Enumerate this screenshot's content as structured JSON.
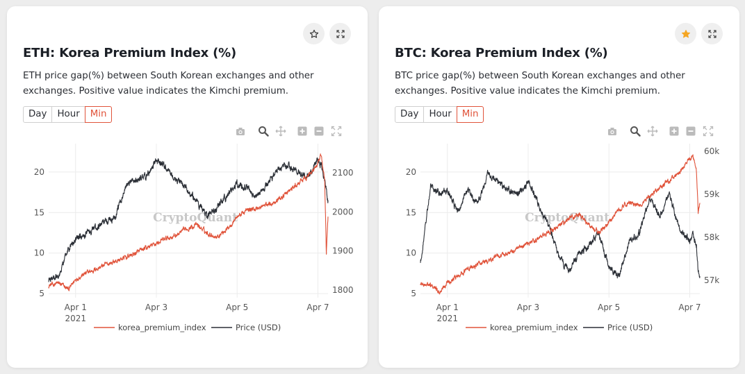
{
  "cards": [
    {
      "id": "eth",
      "title": "ETH: Korea Premium Index (%)",
      "description": "ETH price gap(%) between South Korean exchanges and other exchanges. Positive value indicates the Kimchi premium.",
      "starred": false,
      "tabs": [
        "Day",
        "Hour",
        "Min"
      ],
      "active_tab": "Min",
      "watermark": "CryptoQuant",
      "chart_data": {
        "type": "line",
        "x_range": [
          "2021-03-31 08:00",
          "2021-04-07 06:00"
        ],
        "x_ticks": [
          {
            "label": "Apr 1",
            "sublabel": "2021",
            "x": "2021-04-01"
          },
          {
            "label": "Apr 3",
            "sublabel": "",
            "x": "2021-04-03"
          },
          {
            "label": "Apr 5",
            "sublabel": "",
            "x": "2021-04-05"
          },
          {
            "label": "Apr 7",
            "sublabel": "",
            "x": "2021-04-07"
          }
        ],
        "y_left": {
          "range": [
            4.5,
            23.5
          ],
          "ticks": [
            "5",
            "10",
            "15",
            "20"
          ]
        },
        "y_right": {
          "range": [
            1780,
            2175
          ],
          "ticks": [
            "1800",
            "1900",
            "2000",
            "2100"
          ]
        },
        "grid": true,
        "legend_placement": "bottom",
        "series": [
          {
            "name": "korea_premium_index",
            "axis": "left",
            "color": "#e0533a",
            "x": [
              "2021-03-31 08:00",
              "2021-03-31 14:00",
              "2021-03-31 20:00",
              "2021-04-01 00:00",
              "2021-04-01 06:00",
              "2021-04-01 12:00",
              "2021-04-01 18:00",
              "2021-04-02 00:00",
              "2021-04-02 06:00",
              "2021-04-02 12:00",
              "2021-04-02 18:00",
              "2021-04-03 00:00",
              "2021-04-03 06:00",
              "2021-04-03 12:00",
              "2021-04-03 18:00",
              "2021-04-04 00:00",
              "2021-04-04 06:00",
              "2021-04-04 12:00",
              "2021-04-04 18:00",
              "2021-04-05 00:00",
              "2021-04-05 06:00",
              "2021-04-05 12:00",
              "2021-04-05 18:00",
              "2021-04-06 00:00",
              "2021-04-06 06:00",
              "2021-04-06 12:00",
              "2021-04-06 18:00",
              "2021-04-07 00:00",
              "2021-04-07 02:00",
              "2021-04-07 04:00",
              "2021-04-07 05:00",
              "2021-04-07 06:00"
            ],
            "values": [
              6.0,
              6.3,
              5.5,
              6.8,
              7.5,
              8.0,
              8.6,
              9.0,
              9.5,
              10.0,
              10.6,
              11.2,
              11.8,
              12.2,
              13.0,
              13.5,
              12.5,
              12.0,
              13.0,
              14.5,
              15.3,
              15.5,
              16.0,
              16.5,
              17.5,
              18.5,
              19.5,
              21.0,
              22.0,
              19.0,
              10.0,
              14.5
            ]
          },
          {
            "name": "Price (USD)",
            "axis": "right",
            "color": "#2b2f36",
            "x": [
              "2021-03-31 08:00",
              "2021-03-31 14:00",
              "2021-03-31 20:00",
              "2021-04-01 00:00",
              "2021-04-01 06:00",
              "2021-04-01 12:00",
              "2021-04-01 18:00",
              "2021-04-02 00:00",
              "2021-04-02 06:00",
              "2021-04-02 12:00",
              "2021-04-02 18:00",
              "2021-04-03 00:00",
              "2021-04-03 06:00",
              "2021-04-03 12:00",
              "2021-04-03 18:00",
              "2021-04-04 00:00",
              "2021-04-04 06:00",
              "2021-04-04 12:00",
              "2021-04-04 18:00",
              "2021-04-05 00:00",
              "2021-04-05 06:00",
              "2021-04-05 12:00",
              "2021-04-05 18:00",
              "2021-04-06 00:00",
              "2021-04-06 06:00",
              "2021-04-06 12:00",
              "2021-04-06 18:00",
              "2021-04-07 00:00",
              "2021-04-07 02:00",
              "2021-04-07 04:00",
              "2021-04-07 05:00",
              "2021-04-07 06:00"
            ],
            "values": [
              1825,
              1840,
              1905,
              1930,
              1945,
              1960,
              1975,
              1990,
              2070,
              2080,
              2090,
              2130,
              2110,
              2080,
              2060,
              2030,
              1990,
              2010,
              2040,
              2070,
              2060,
              2040,
              2070,
              2110,
              2120,
              2100,
              2090,
              2130,
              2120,
              2080,
              2060,
              2030
            ]
          }
        ]
      }
    },
    {
      "id": "btc",
      "title": "BTC: Korea Premium Index (%)",
      "description": "BTC price gap(%) between South Korean exchanges and other exchanges. Positive value indicates the Kimchi premium.",
      "starred": true,
      "tabs": [
        "Day",
        "Hour",
        "Min"
      ],
      "active_tab": "Min",
      "watermark": "CryptoQuant",
      "chart_data": {
        "type": "line",
        "x_range": [
          "2021-03-31 08:00",
          "2021-04-07 06:00"
        ],
        "x_ticks": [
          {
            "label": "Apr 1",
            "sublabel": "2021",
            "x": "2021-04-01"
          },
          {
            "label": "Apr 3",
            "sublabel": "",
            "x": "2021-04-03"
          },
          {
            "label": "Apr 5",
            "sublabel": "",
            "x": "2021-04-05"
          },
          {
            "label": "Apr 7",
            "sublabel": "",
            "x": "2021-04-07"
          }
        ],
        "y_left": {
          "range": [
            4.5,
            23.5
          ],
          "ticks": [
            "5",
            "10",
            "15",
            "20"
          ]
        },
        "y_right": {
          "range": [
            56600,
            60180
          ],
          "ticks": [
            "57k",
            "58k",
            "59k",
            "60k"
          ]
        },
        "grid": true,
        "legend_placement": "bottom",
        "series": [
          {
            "name": "korea_premium_index",
            "axis": "left",
            "color": "#e0533a",
            "x": [
              "2021-03-31 08:00",
              "2021-03-31 14:00",
              "2021-03-31 20:00",
              "2021-04-01 00:00",
              "2021-04-01 06:00",
              "2021-04-01 12:00",
              "2021-04-01 18:00",
              "2021-04-02 00:00",
              "2021-04-02 06:00",
              "2021-04-02 12:00",
              "2021-04-02 18:00",
              "2021-04-03 00:00",
              "2021-04-03 06:00",
              "2021-04-03 12:00",
              "2021-04-03 18:00",
              "2021-04-04 00:00",
              "2021-04-04 06:00",
              "2021-04-04 12:00",
              "2021-04-04 18:00",
              "2021-04-05 00:00",
              "2021-04-05 06:00",
              "2021-04-05 12:00",
              "2021-04-05 18:00",
              "2021-04-06 00:00",
              "2021-04-06 06:00",
              "2021-04-06 12:00",
              "2021-04-06 18:00",
              "2021-04-07 00:00",
              "2021-04-07 02:00",
              "2021-04-07 04:00",
              "2021-04-07 05:00",
              "2021-04-07 06:00"
            ],
            "values": [
              6.2,
              6.0,
              5.2,
              6.5,
              7.2,
              8.0,
              8.6,
              9.0,
              9.6,
              10.0,
              10.5,
              11.2,
              11.8,
              12.5,
              13.3,
              14.2,
              14.8,
              13.5,
              12.5,
              13.8,
              15.5,
              16.2,
              15.8,
              17.0,
              18.0,
              19.0,
              20.0,
              21.5,
              22.0,
              20.0,
              15.0,
              16.2
            ]
          },
          {
            "name": "Price (USD)",
            "axis": "right",
            "color": "#2b2f36",
            "x": [
              "2021-03-31 08:00",
              "2021-03-31 14:00",
              "2021-03-31 20:00",
              "2021-04-01 00:00",
              "2021-04-01 06:00",
              "2021-04-01 12:00",
              "2021-04-01 18:00",
              "2021-04-02 00:00",
              "2021-04-02 06:00",
              "2021-04-02 12:00",
              "2021-04-02 18:00",
              "2021-04-03 00:00",
              "2021-04-03 06:00",
              "2021-04-03 12:00",
              "2021-04-03 18:00",
              "2021-04-04 00:00",
              "2021-04-04 06:00",
              "2021-04-04 12:00",
              "2021-04-04 18:00",
              "2021-04-05 00:00",
              "2021-04-05 06:00",
              "2021-04-05 12:00",
              "2021-04-05 18:00",
              "2021-04-06 00:00",
              "2021-04-06 06:00",
              "2021-04-06 12:00",
              "2021-04-06 18:00",
              "2021-04-07 00:00",
              "2021-04-07 02:00",
              "2021-04-07 04:00",
              "2021-04-07 05:00",
              "2021-04-07 06:00"
            ],
            "values": [
              57400,
              59200,
              59000,
              59100,
              58600,
              59100,
              58800,
              59500,
              59300,
              59100,
              59000,
              59300,
              58800,
              58300,
              57600,
              57200,
              57600,
              57800,
              58100,
              57300,
              57100,
              57900,
              58100,
              58900,
              58500,
              59000,
              58200,
              57900,
              58100,
              57800,
              57200,
              57100
            ]
          }
        ]
      }
    }
  ],
  "toolbar_icons": [
    "camera-icon",
    "zoom-icon",
    "pan-icon",
    "zoom-in-icon",
    "zoom-out-icon",
    "autoscale-icon"
  ],
  "colors": {
    "accent": "#e0533a",
    "price_line": "#2b2f36",
    "star_active": "#f5a623"
  }
}
